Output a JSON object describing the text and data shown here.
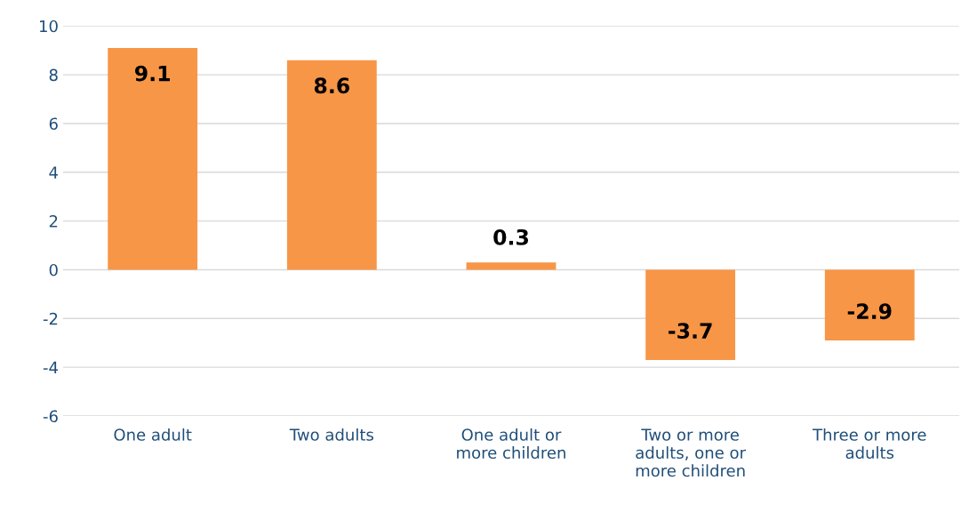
{
  "chart_data": {
    "type": "bar",
    "categories": [
      "One adult",
      "Two adults",
      "One adult or\nmore children",
      "Two or more\nadults, one or\nmore children",
      "Three or more\nadults"
    ],
    "values": [
      9.1,
      8.6,
      0.3,
      -3.7,
      -2.9
    ],
    "color": "#f79646",
    "data_labels": true,
    "ylim": [
      -6,
      10
    ],
    "yticks": [
      -6,
      -4,
      -2,
      0,
      2,
      4,
      6,
      8,
      10
    ],
    "grid": "y",
    "legend": false
  }
}
